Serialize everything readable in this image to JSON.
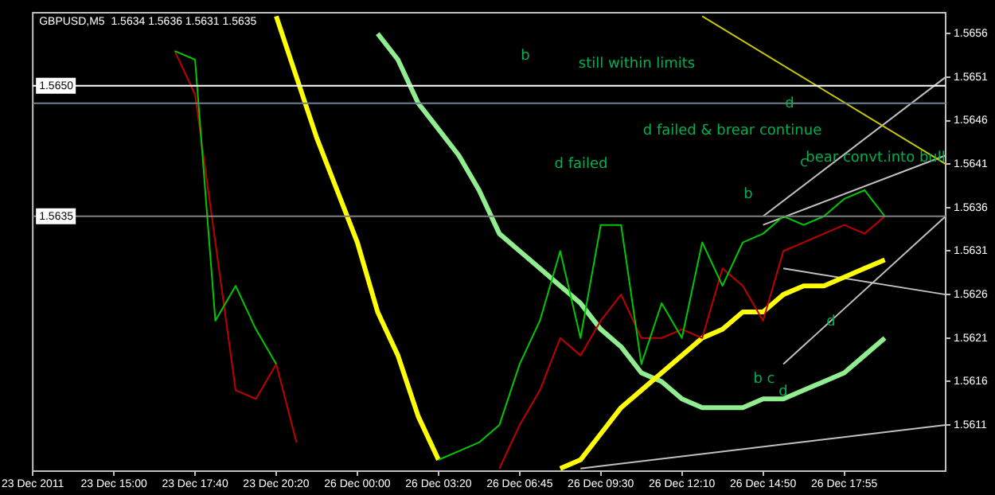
{
  "chart_data": {
    "type": "line",
    "title": "GBPUSD,M5  1.5634 1.5636 1.5631 1.5635",
    "categories": [
      "23 Dec 2011",
      null,
      null,
      null,
      "23 Dec 15:00",
      null,
      null,
      null,
      "23 Dec 17:40",
      null,
      null,
      null,
      "23 Dec 20:20",
      null,
      null,
      null,
      "26 Dec 00:00",
      null,
      null,
      null,
      "26 Dec 03:20",
      null,
      null,
      null,
      "26 Dec 06:45",
      null,
      null,
      null,
      "26 Dec 09:30",
      null,
      null,
      null,
      "26 Dec 12:10",
      null,
      null,
      null,
      "26 Dec 14:50",
      null,
      null,
      null,
      "26 Dec 17:55",
      null,
      null,
      null,
      null,
      null
    ],
    "series": [
      {
        "color": "#00c800",
        "values": [
          null,
          null,
          null,
          null,
          null,
          null,
          null,
          1.5654,
          1.5653,
          1.5623,
          1.5627,
          1.5622,
          1.5618,
          null,
          null,
          null,
          null,
          null,
          null,
          null,
          1.5607,
          1.5608,
          1.5609,
          1.5611,
          1.5618,
          1.5623,
          1.5631,
          1.5621,
          1.5634,
          1.5634,
          1.5618,
          1.5625,
          1.5621,
          1.5632,
          1.5627,
          1.5632,
          1.5633,
          1.5635,
          1.5634,
          1.5635,
          1.5637,
          1.5638,
          1.5635,
          null,
          null,
          null
        ]
      },
      {
        "color": "#c00000",
        "values": [
          null,
          null,
          null,
          null,
          null,
          null,
          null,
          1.5654,
          1.5649,
          1.5632,
          1.5615,
          1.5614,
          1.5618,
          1.5609,
          null,
          null,
          null,
          null,
          null,
          null,
          null,
          null,
          null,
          1.5606,
          1.5611,
          1.5615,
          1.5621,
          1.5619,
          1.5623,
          1.5626,
          1.5621,
          1.5621,
          1.5622,
          1.5621,
          1.5629,
          1.5627,
          1.5623,
          1.5631,
          1.5632,
          1.5633,
          1.5634,
          1.5633,
          1.5635,
          null,
          null,
          null
        ]
      },
      {
        "color": "#ffff00",
        "values": [
          null,
          null,
          null,
          null,
          null,
          null,
          null,
          null,
          null,
          null,
          null,
          null,
          1.5658,
          1.5651,
          1.5644,
          1.5638,
          1.5632,
          1.5624,
          1.5619,
          1.5612,
          1.5607,
          null,
          null,
          null,
          null,
          null,
          1.5606,
          1.5607,
          1.561,
          1.5613,
          1.5615,
          1.5617,
          1.5619,
          1.5621,
          1.5622,
          1.5624,
          1.5624,
          1.5626,
          1.5627,
          1.5627,
          1.5628,
          1.5629,
          1.563,
          null,
          null,
          null
        ]
      },
      {
        "color": "#90ee90",
        "values": [
          null,
          null,
          null,
          null,
          null,
          null,
          null,
          null,
          null,
          null,
          null,
          null,
          null,
          null,
          null,
          null,
          null,
          1.5656,
          1.5653,
          1.5648,
          1.5645,
          1.5642,
          1.5638,
          1.5633,
          1.5631,
          1.5629,
          1.5627,
          1.5625,
          1.5622,
          1.562,
          1.5617,
          1.5616,
          1.5614,
          1.5613,
          1.5613,
          1.5613,
          1.5614,
          1.5614,
          1.5615,
          1.5616,
          1.5617,
          1.5619,
          1.5621,
          null,
          null,
          null
        ]
      },
      {
        "color": "#c8c800",
        "values": [
          null,
          null,
          null,
          null,
          null,
          null,
          null,
          null,
          null,
          null,
          null,
          null,
          null,
          null,
          null,
          null,
          null,
          null,
          null,
          null,
          null,
          null,
          null,
          null,
          null,
          null,
          null,
          null,
          null,
          null,
          null,
          null,
          null,
          1.5658,
          null,
          null,
          null,
          null,
          null,
          null,
          null,
          null,
          null,
          null,
          null,
          1.5641
        ]
      },
      {
        "color": "#c0c0c0",
        "values": [
          null,
          null,
          null,
          null,
          null,
          null,
          null,
          null,
          null,
          null,
          null,
          null,
          null,
          null,
          null,
          null,
          null,
          null,
          null,
          null,
          null,
          null,
          null,
          null,
          null,
          null,
          null,
          null,
          null,
          null,
          null,
          null,
          null,
          null,
          null,
          null,
          1.5635,
          null,
          null,
          null,
          null,
          null,
          null,
          null,
          null,
          1.5651
        ]
      },
      {
        "color": "#c0c0c0",
        "values": [
          null,
          null,
          null,
          null,
          null,
          null,
          null,
          null,
          null,
          null,
          null,
          null,
          null,
          null,
          null,
          null,
          null,
          null,
          null,
          null,
          null,
          null,
          null,
          null,
          null,
          null,
          null,
          null,
          null,
          null,
          null,
          null,
          null,
          null,
          null,
          null,
          1.5634,
          null,
          null,
          null,
          null,
          null,
          null,
          null,
          null,
          1.5642
        ]
      },
      {
        "color": "#c0c0c0",
        "values": [
          null,
          null,
          null,
          null,
          null,
          null,
          null,
          null,
          null,
          null,
          null,
          null,
          null,
          null,
          null,
          null,
          null,
          null,
          null,
          null,
          null,
          null,
          null,
          null,
          null,
          null,
          null,
          null,
          null,
          null,
          null,
          null,
          null,
          null,
          null,
          null,
          null,
          1.5629,
          null,
          null,
          null,
          null,
          null,
          null,
          null,
          1.5626
        ]
      },
      {
        "color": "#c0c0c0",
        "values": [
          null,
          null,
          null,
          null,
          null,
          null,
          null,
          null,
          null,
          null,
          null,
          null,
          null,
          null,
          null,
          null,
          null,
          null,
          null,
          null,
          null,
          null,
          null,
          null,
          null,
          null,
          null,
          1.5606,
          null,
          null,
          null,
          null,
          null,
          null,
          null,
          null,
          null,
          null,
          null,
          null,
          null,
          null,
          null,
          null,
          null,
          1.5611
        ]
      },
      {
        "color": "#c0c0c0",
        "values": [
          null,
          null,
          null,
          null,
          null,
          null,
          null,
          null,
          null,
          null,
          null,
          null,
          null,
          null,
          null,
          null,
          null,
          null,
          null,
          null,
          null,
          null,
          null,
          null,
          null,
          null,
          null,
          null,
          null,
          null,
          null,
          null,
          null,
          null,
          null,
          null,
          null,
          1.5618,
          null,
          null,
          null,
          null,
          null,
          null,
          null,
          1.5635
        ]
      }
    ],
    "ylim": [
      1.56057,
      1.56584
    ],
    "yticks": [
      1.5611,
      1.5616,
      1.5621,
      1.5626,
      1.5631,
      1.5636,
      1.5641,
      1.5646,
      1.5651,
      1.5656
    ],
    "ref_lines": [
      {
        "axis": "y",
        "value": 1.565,
        "label": "1.5650",
        "color": "#ffffff"
      },
      {
        "axis": "y",
        "value": 1.5648,
        "color": "#708090"
      },
      {
        "axis": "y",
        "value": 1.5635,
        "label": "1.5635",
        "color": "#808080"
      }
    ],
    "annotations": [
      "b",
      "still within limits",
      "d",
      "d failed & brear continue",
      "d failed",
      "c",
      "bear convt.into bull",
      "b",
      "d",
      "b c",
      "d"
    ],
    "grid": false,
    "legend": false
  }
}
